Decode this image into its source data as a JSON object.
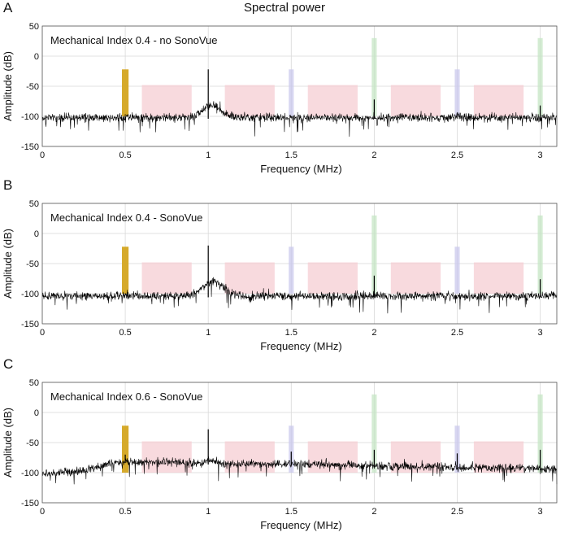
{
  "figure": {
    "title": "Spectral power"
  },
  "colors": {
    "band_subharmonic": "#d4a520",
    "band_broadband": "#f6cdd3",
    "band_ultraharmonic": "#c9c8ec",
    "band_harmonic": "#c6e6c4",
    "grid": "#d8d8d8",
    "trace": "#000000"
  },
  "chart_data": [
    {
      "type": "line",
      "panel_label": "A",
      "annotation": "Mechanical Index 0.4 - no SonoVue",
      "xlabel": "Frequency (MHz)",
      "ylabel": "Amplitude (dB)",
      "xlim": [
        0,
        3.1
      ],
      "ylim": [
        -150,
        50
      ],
      "xticks": [
        "0",
        "0.5",
        "1",
        "1.5",
        "2",
        "2.5",
        "3"
      ],
      "yticks": [
        "50",
        "0",
        "-50",
        "-100",
        "-150"
      ],
      "grid": true,
      "noise_floor_db": -102,
      "noise_spread_db": 14,
      "hump": {
        "center_mhz": 1.02,
        "width_mhz": 0.08,
        "height_db": 20
      },
      "peaks": [
        {
          "freq_mhz": 1.0,
          "amplitude_db": -22
        },
        {
          "freq_mhz": 2.0,
          "amplitude_db": -72
        },
        {
          "freq_mhz": 3.0,
          "amplitude_db": -82
        }
      ],
      "bands": [
        {
          "kind": "subharmonic",
          "f0": 0.48,
          "f1": 0.52,
          "ymin": -100,
          "ymax": -22
        },
        {
          "kind": "broadband",
          "f0": 0.6,
          "f1": 0.9,
          "ymin": -100,
          "ymax": -48
        },
        {
          "kind": "broadband",
          "f0": 1.1,
          "f1": 1.4,
          "ymin": -100,
          "ymax": -48
        },
        {
          "kind": "broadband",
          "f0": 1.6,
          "f1": 1.9,
          "ymin": -100,
          "ymax": -48
        },
        {
          "kind": "broadband",
          "f0": 2.1,
          "f1": 2.4,
          "ymin": -100,
          "ymax": -48
        },
        {
          "kind": "broadband",
          "f0": 2.6,
          "f1": 2.9,
          "ymin": -100,
          "ymax": -48
        },
        {
          "kind": "ultraharmonic",
          "f0": 1.485,
          "f1": 1.515,
          "ymin": -100,
          "ymax": -22
        },
        {
          "kind": "ultraharmonic",
          "f0": 2.485,
          "f1": 2.515,
          "ymin": -100,
          "ymax": -22
        },
        {
          "kind": "harmonic",
          "f0": 1.985,
          "f1": 2.015,
          "ymin": -100,
          "ymax": 30
        },
        {
          "kind": "harmonic",
          "f0": 2.985,
          "f1": 3.015,
          "ymin": -100,
          "ymax": 30
        }
      ]
    },
    {
      "type": "line",
      "panel_label": "B",
      "annotation": "Mechanical Index 0.4 - SonoVue",
      "xlabel": "Frequency (MHz)",
      "ylabel": "Amplitude (dB)",
      "xlim": [
        0,
        3.1
      ],
      "ylim": [
        -150,
        50
      ],
      "xticks": [
        "0",
        "0.5",
        "1",
        "1.5",
        "2",
        "2.5",
        "3"
      ],
      "yticks": [
        "50",
        "0",
        "-50",
        "-100",
        "-150"
      ],
      "grid": true,
      "noise_floor_db": -104,
      "noise_spread_db": 14,
      "hump": {
        "center_mhz": 1.03,
        "width_mhz": 0.09,
        "height_db": 24
      },
      "peaks": [
        {
          "freq_mhz": 1.0,
          "amplitude_db": -20
        },
        {
          "freq_mhz": 2.0,
          "amplitude_db": -70
        },
        {
          "freq_mhz": 3.0,
          "amplitude_db": -76
        }
      ],
      "bands": [
        {
          "kind": "subharmonic",
          "f0": 0.48,
          "f1": 0.52,
          "ymin": -100,
          "ymax": -22
        },
        {
          "kind": "broadband",
          "f0": 0.6,
          "f1": 0.9,
          "ymin": -100,
          "ymax": -48
        },
        {
          "kind": "broadband",
          "f0": 1.1,
          "f1": 1.4,
          "ymin": -100,
          "ymax": -48
        },
        {
          "kind": "broadband",
          "f0": 1.6,
          "f1": 1.9,
          "ymin": -100,
          "ymax": -48
        },
        {
          "kind": "broadband",
          "f0": 2.1,
          "f1": 2.4,
          "ymin": -100,
          "ymax": -48
        },
        {
          "kind": "broadband",
          "f0": 2.6,
          "f1": 2.9,
          "ymin": -100,
          "ymax": -48
        },
        {
          "kind": "ultraharmonic",
          "f0": 1.485,
          "f1": 1.515,
          "ymin": -100,
          "ymax": -22
        },
        {
          "kind": "ultraharmonic",
          "f0": 2.485,
          "f1": 2.515,
          "ymin": -100,
          "ymax": -22
        },
        {
          "kind": "harmonic",
          "f0": 1.985,
          "f1": 2.015,
          "ymin": -100,
          "ymax": 30
        },
        {
          "kind": "harmonic",
          "f0": 2.985,
          "f1": 3.015,
          "ymin": -100,
          "ymax": 30
        }
      ]
    },
    {
      "type": "line",
      "panel_label": "C",
      "annotation": "Mechanical Index 0.6 - SonoVue",
      "xlabel": "Frequency (MHz)",
      "ylabel": "Amplitude (dB)",
      "xlim": [
        0,
        3.1
      ],
      "ylim": [
        -150,
        50
      ],
      "xticks": [
        "0",
        "0.5",
        "1",
        "1.5",
        "2",
        "2.5",
        "3"
      ],
      "yticks": [
        "50",
        "0",
        "-50",
        "-100",
        "-150"
      ],
      "grid": true,
      "noise_floor_db": -100,
      "noise_spread_db": 14,
      "floor_profile": [
        {
          "freq_mhz": 0.0,
          "db": -103
        },
        {
          "freq_mhz": 0.25,
          "db": -97
        },
        {
          "freq_mhz": 0.45,
          "db": -82
        },
        {
          "freq_mhz": 0.7,
          "db": -82
        },
        {
          "freq_mhz": 1.2,
          "db": -86
        },
        {
          "freq_mhz": 1.6,
          "db": -86
        },
        {
          "freq_mhz": 2.2,
          "db": -90
        },
        {
          "freq_mhz": 3.1,
          "db": -94
        }
      ],
      "hump": {
        "center_mhz": 1.02,
        "width_mhz": 0.04,
        "height_db": 6
      },
      "peaks": [
        {
          "freq_mhz": 0.5,
          "amplitude_db": -70
        },
        {
          "freq_mhz": 1.0,
          "amplitude_db": -28
        },
        {
          "freq_mhz": 1.5,
          "amplitude_db": -65
        },
        {
          "freq_mhz": 2.0,
          "amplitude_db": -62
        },
        {
          "freq_mhz": 2.5,
          "amplitude_db": -68
        },
        {
          "freq_mhz": 3.0,
          "amplitude_db": -62
        }
      ],
      "bands": [
        {
          "kind": "subharmonic",
          "f0": 0.48,
          "f1": 0.52,
          "ymin": -100,
          "ymax": -22
        },
        {
          "kind": "broadband",
          "f0": 0.6,
          "f1": 0.9,
          "ymin": -100,
          "ymax": -48
        },
        {
          "kind": "broadband",
          "f0": 1.1,
          "f1": 1.4,
          "ymin": -100,
          "ymax": -48
        },
        {
          "kind": "broadband",
          "f0": 1.6,
          "f1": 1.9,
          "ymin": -100,
          "ymax": -48
        },
        {
          "kind": "broadband",
          "f0": 2.1,
          "f1": 2.4,
          "ymin": -100,
          "ymax": -48
        },
        {
          "kind": "broadband",
          "f0": 2.6,
          "f1": 2.9,
          "ymin": -100,
          "ymax": -48
        },
        {
          "kind": "ultraharmonic",
          "f0": 1.485,
          "f1": 1.515,
          "ymin": -100,
          "ymax": -22
        },
        {
          "kind": "ultraharmonic",
          "f0": 2.485,
          "f1": 2.515,
          "ymin": -100,
          "ymax": -22
        },
        {
          "kind": "harmonic",
          "f0": 1.985,
          "f1": 2.015,
          "ymin": -100,
          "ymax": 30
        },
        {
          "kind": "harmonic",
          "f0": 2.985,
          "f1": 3.015,
          "ymin": -100,
          "ymax": 30
        }
      ]
    }
  ]
}
